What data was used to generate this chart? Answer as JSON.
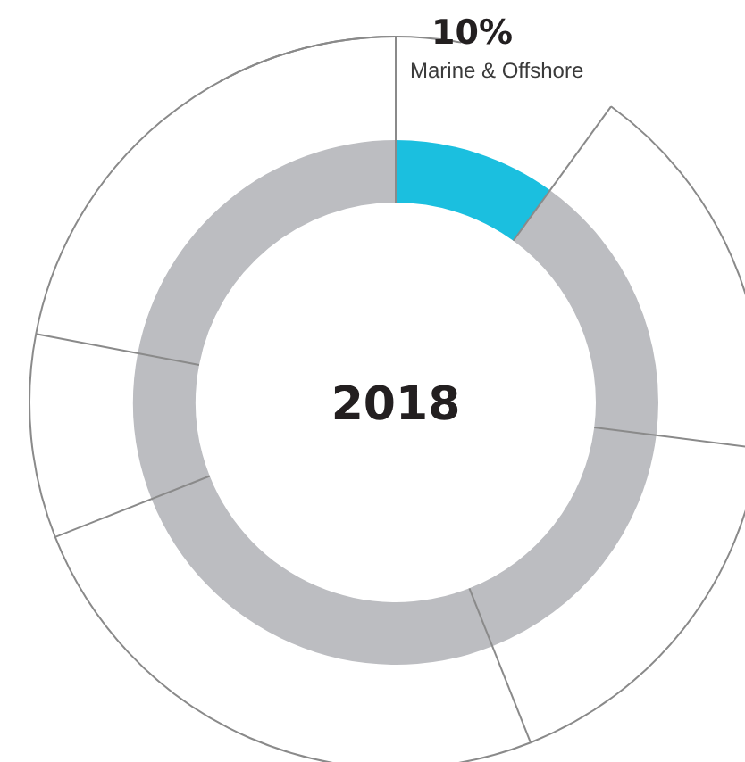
{
  "chart_data": {
    "type": "donut",
    "title": "2018",
    "categories": [
      "Marine & Offshore",
      null,
      null,
      null,
      null,
      null
    ],
    "values": [
      10,
      17,
      17,
      25,
      9,
      22
    ],
    "colors": [
      "#1bbfdf",
      "#bcbdc1",
      "#bcbdc1",
      "#bcbdc1",
      "#bcbdc1",
      "#bcbdc1"
    ],
    "value_labels": [
      "10%",
      null,
      null,
      null,
      null,
      null
    ]
  }
}
